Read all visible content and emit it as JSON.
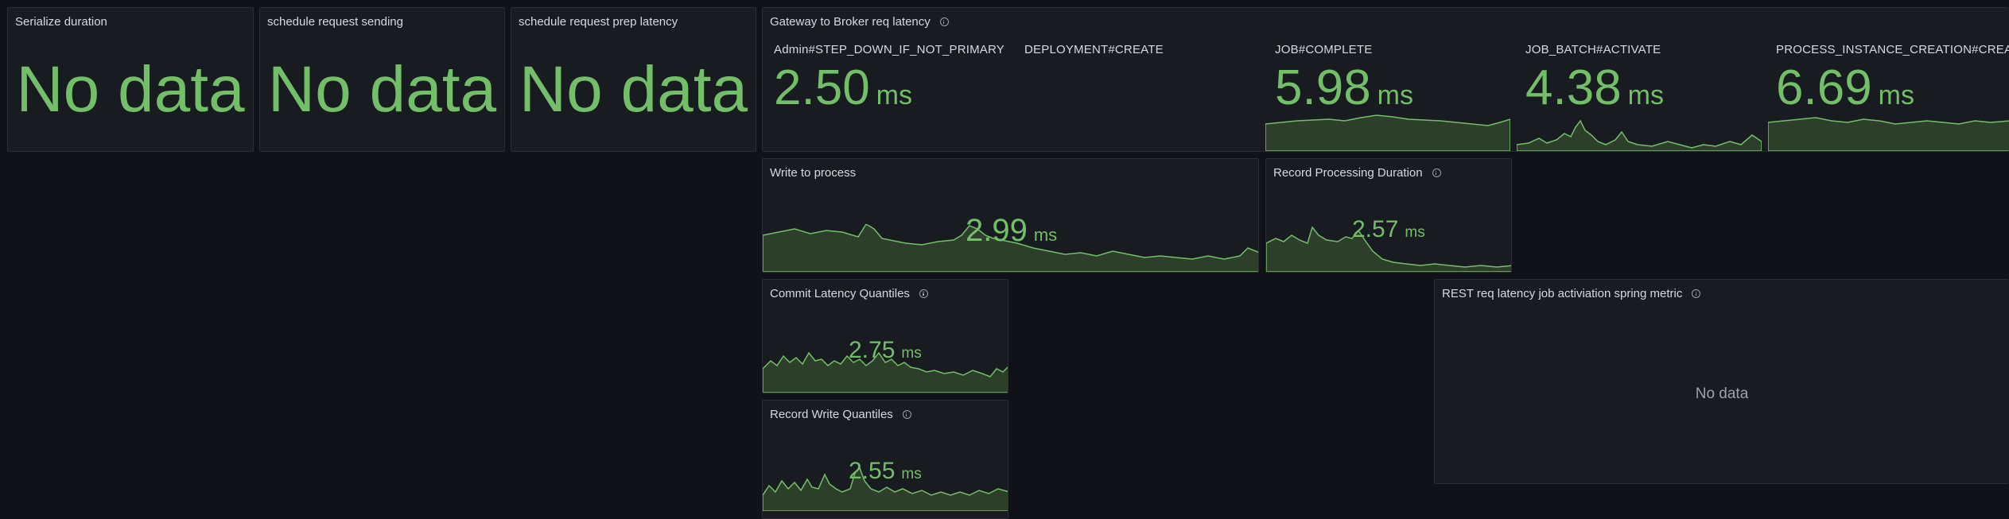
{
  "theme": {
    "background": "#111217",
    "panel": "#181b1f",
    "value_color": "#73bf69",
    "spark_fill": "#2d3f2b"
  },
  "panels": {
    "serialize": {
      "title": "Serialize duration",
      "value": "No data"
    },
    "schedule_sending": {
      "title": "schedule request sending",
      "value": "No data"
    },
    "schedule_prep": {
      "title": "schedule request prep latency",
      "value": "No data"
    },
    "gateway": {
      "title": "Gateway to Broker req latency",
      "info_icon": "info-icon",
      "stats": [
        {
          "label": "Admin#STEP_DOWN_IF_NOT_PRIMARY",
          "value": "2.50",
          "unit": "ms"
        },
        {
          "label": "DEPLOYMENT#CREATE",
          "value": "",
          "unit": ""
        },
        {
          "label": "JOB#COMPLETE",
          "value": "5.98",
          "unit": "ms"
        },
        {
          "label": "JOB_BATCH#ACTIVATE",
          "value": "4.38",
          "unit": "ms"
        },
        {
          "label": "PROCESS_INSTANCE_CREATION#CREATE",
          "value": "6.69",
          "unit": "ms"
        }
      ]
    },
    "write_to_process": {
      "title": "Write to process",
      "value": "2.99",
      "unit": "ms"
    },
    "record_processing": {
      "title": "Record Processing Duration",
      "value": "2.57",
      "unit": "ms"
    },
    "commit_latency": {
      "title": "Commit Latency Quantiles",
      "value": "2.75",
      "unit": "ms"
    },
    "record_write": {
      "title": "Record Write Quantiles",
      "value": "2.55",
      "unit": "ms"
    },
    "rest_latency": {
      "title": "REST req latency job activiation spring metric",
      "value": "No data"
    }
  }
}
